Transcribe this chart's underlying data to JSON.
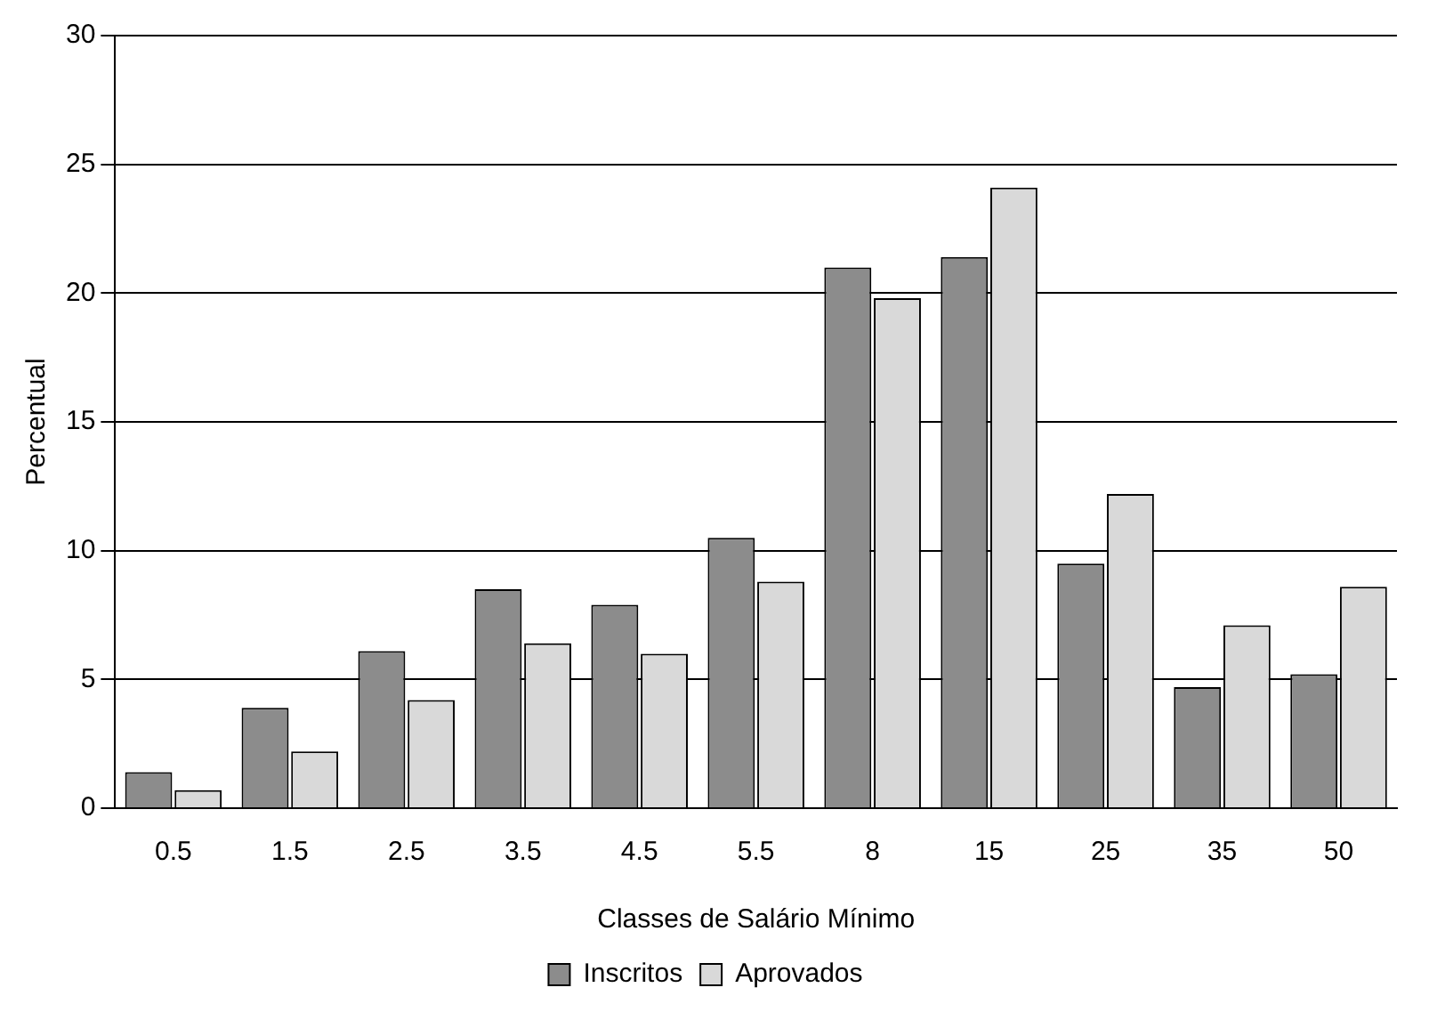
{
  "chart_data": {
    "type": "bar",
    "xlabel": "Classes de Salário Mínimo",
    "ylabel": "Percentual",
    "categories": [
      "0.5",
      "1.5",
      "2.5",
      "3.5",
      "4.5",
      "5.5",
      "8",
      "15",
      "25",
      "35",
      "50"
    ],
    "series": [
      {
        "name": "Inscritos",
        "color": "#8c8c8c",
        "values": [
          1.4,
          3.9,
          6.1,
          8.5,
          7.9,
          10.5,
          21.0,
          21.4,
          9.5,
          4.7,
          5.2
        ]
      },
      {
        "name": "Aprovados",
        "color": "#d9d9d9",
        "values": [
          0.7,
          2.2,
          4.2,
          6.4,
          6.0,
          8.8,
          19.8,
          24.1,
          12.2,
          7.1,
          8.6
        ]
      }
    ],
    "ylim": [
      0,
      30
    ],
    "yticks": [
      0,
      5,
      10,
      15,
      20,
      25,
      30
    ],
    "grid": "y",
    "legend": "bottom"
  }
}
